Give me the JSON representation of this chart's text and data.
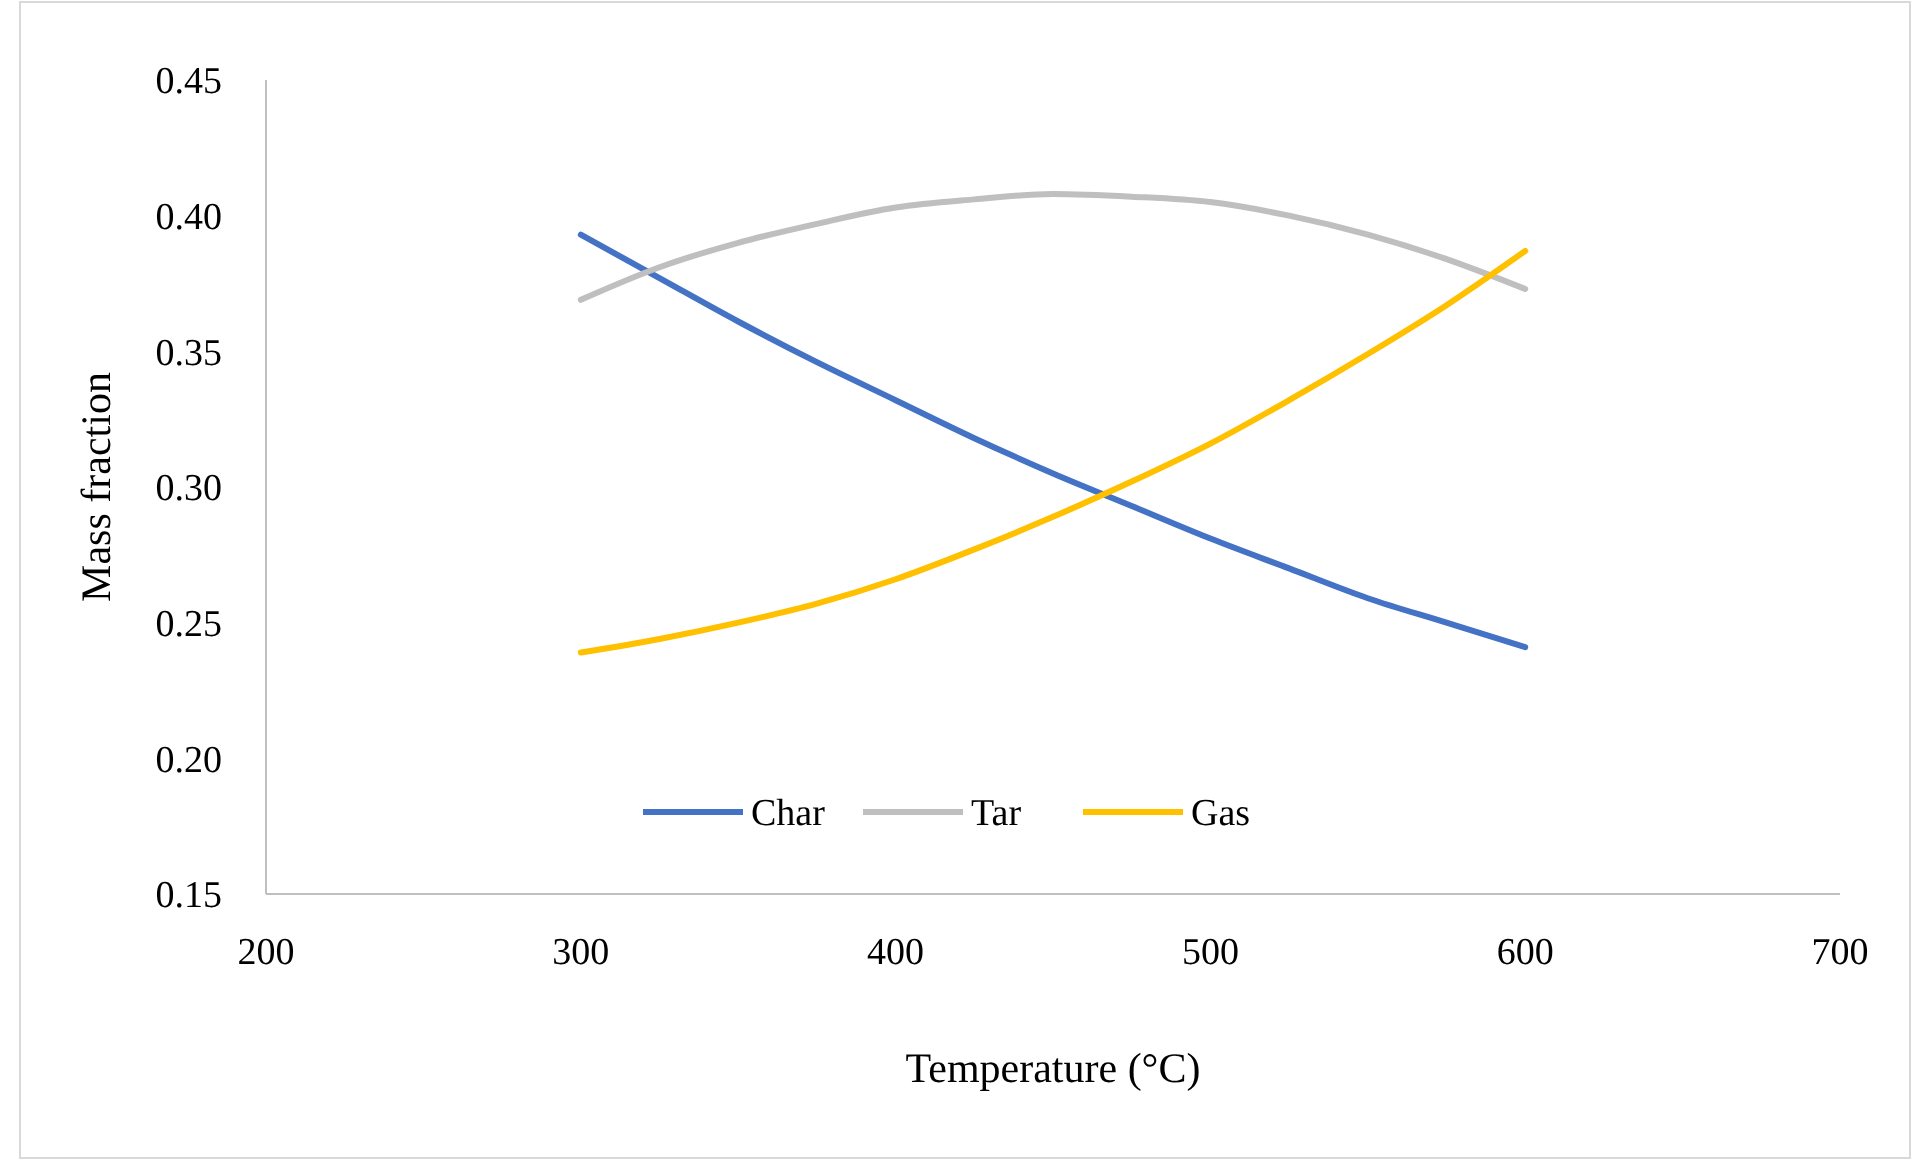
{
  "chart_data": {
    "type": "line",
    "xlabel": "Temperature (°C)",
    "ylabel": "Mass fraction",
    "x": [
      300,
      325,
      350,
      375,
      400,
      425,
      450,
      475,
      500,
      525,
      550,
      575,
      600
    ],
    "series": [
      {
        "name": "Char",
        "color": "#4472c4",
        "values": [
          0.393,
          0.377,
          0.361,
          0.346,
          0.332,
          0.318,
          0.305,
          0.293,
          0.281,
          0.27,
          0.259,
          0.25,
          0.241
        ]
      },
      {
        "name": "Tar",
        "color": "#bfbfbf",
        "values": [
          0.369,
          0.381,
          0.39,
          0.397,
          0.403,
          0.406,
          0.408,
          0.407,
          0.405,
          0.4,
          0.393,
          0.384,
          0.373
        ]
      },
      {
        "name": "Gas",
        "color": "#ffc000",
        "values": [
          0.239,
          0.244,
          0.25,
          0.257,
          0.266,
          0.277,
          0.289,
          0.302,
          0.316,
          0.332,
          0.349,
          0.367,
          0.387
        ]
      }
    ],
    "xlim": [
      200,
      700
    ],
    "xticks": [
      200,
      300,
      400,
      500,
      600,
      700
    ],
    "ylim": [
      0.15,
      0.45
    ],
    "yticks": [
      {
        "value": 0.15,
        "label": "0.15"
      },
      {
        "value": 0.2,
        "label": "0.20"
      },
      {
        "value": 0.25,
        "label": "0.25"
      },
      {
        "value": 0.3,
        "label": "0.30"
      },
      {
        "value": 0.35,
        "label": "0.35"
      },
      {
        "value": 0.4,
        "label": "0.40"
      },
      {
        "value": 0.45,
        "label": "0.45"
      }
    ],
    "grid": false,
    "legend": "bottom",
    "line_style": "solid"
  }
}
